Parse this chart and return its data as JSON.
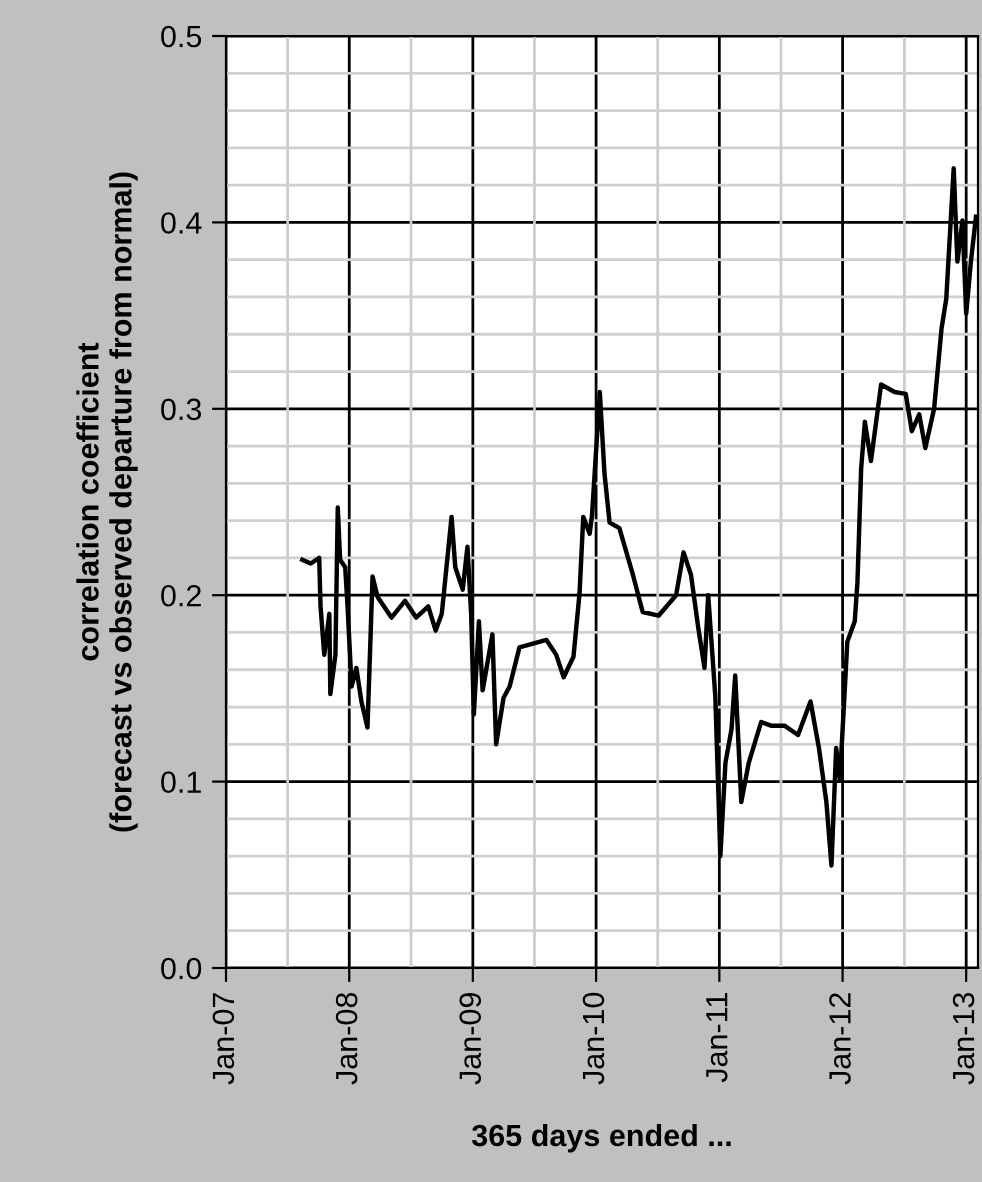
{
  "chart_data": {
    "type": "line",
    "xlabel": "365 days ended ...",
    "ylabel": "correlation coefficient\n(forecast vs observed departure from normal)",
    "series": [
      {
        "color": "#000000",
        "x": [
          "2007-08-15",
          "2007-09-09",
          "2007-10-04",
          "2007-10-08",
          "2007-10-19",
          "2007-11-03",
          "2007-11-06",
          "2007-11-21",
          "2007-11-28",
          "2007-12-05",
          "2007-12-20",
          "2007-12-27",
          "2008-01-08",
          "2008-01-22",
          "2008-02-06",
          "2008-02-24",
          "2008-03-10",
          "2008-03-25",
          "2008-05-05",
          "2008-06-14",
          "2008-07-17",
          "2008-08-22",
          "2008-09-13",
          "2008-10-01",
          "2008-10-30",
          "2008-11-10",
          "2008-12-02",
          "2008-12-16",
          "2008-12-27",
          "2009-01-04",
          "2009-01-19",
          "2009-01-30",
          "2009-02-28",
          "2009-03-11",
          "2009-04-02",
          "2009-04-20",
          "2009-05-19",
          "2009-06-28",
          "2009-08-07",
          "2009-09-05",
          "2009-09-27",
          "2009-10-26",
          "2009-11-13",
          "2009-11-24",
          "2009-12-13",
          "2009-12-20",
          "2010-01-12",
          "2010-01-26",
          "2010-02-10",
          "2010-03-11",
          "2010-04-20",
          "2010-05-19",
          "2010-07-05",
          "2010-08-26",
          "2010-09-17",
          "2010-10-09",
          "2010-10-31",
          "2010-11-18",
          "2010-11-29",
          "2010-12-20",
          "2011-01-04",
          "2011-01-19",
          "2011-02-06",
          "2011-02-17",
          "2011-03-07",
          "2011-03-29",
          "2011-05-05",
          "2011-06-03",
          "2011-07-13",
          "2011-08-22",
          "2011-09-28",
          "2011-10-23",
          "2011-11-14",
          "2011-11-29",
          "2011-12-13",
          "2011-12-24",
          "2012-01-15",
          "2012-02-06",
          "2012-02-14",
          "2012-02-25",
          "2012-03-07",
          "2012-03-25",
          "2012-04-24",
          "2012-06-03",
          "2012-07-06",
          "2012-07-24",
          "2012-08-15",
          "2012-09-02",
          "2012-09-28",
          "2012-10-20",
          "2012-11-03",
          "2012-11-25",
          "2012-12-06",
          "2012-12-21",
          "2013-01-01",
          "2013-01-15",
          "2013-01-30"
        ],
        "values": [
          0.219,
          0.217,
          0.22,
          0.194,
          0.168,
          0.19,
          0.147,
          0.168,
          0.247,
          0.219,
          0.215,
          0.194,
          0.151,
          0.161,
          0.143,
          0.129,
          0.21,
          0.199,
          0.188,
          0.197,
          0.188,
          0.194,
          0.181,
          0.19,
          0.242,
          0.215,
          0.203,
          0.226,
          0.19,
          0.136,
          0.186,
          0.149,
          0.179,
          0.12,
          0.145,
          0.151,
          0.172,
          0.174,
          0.176,
          0.168,
          0.156,
          0.167,
          0.201,
          0.242,
          0.233,
          0.243,
          0.309,
          0.265,
          0.239,
          0.236,
          0.211,
          0.191,
          0.189,
          0.2,
          0.223,
          0.211,
          0.182,
          0.161,
          0.2,
          0.146,
          0.06,
          0.11,
          0.128,
          0.157,
          0.089,
          0.11,
          0.132,
          0.13,
          0.13,
          0.125,
          0.143,
          0.118,
          0.089,
          0.055,
          0.118,
          0.101,
          0.175,
          0.186,
          0.207,
          0.268,
          0.293,
          0.272,
          0.313,
          0.309,
          0.308,
          0.288,
          0.297,
          0.279,
          0.3,
          0.343,
          0.359,
          0.429,
          0.379,
          0.401,
          0.351,
          0.379,
          0.403
        ]
      }
    ],
    "xlim": [
      "2007-01-01",
      "2013-02-05"
    ],
    "xticks": [
      {
        "value": "2007-01-01",
        "label": "Jan-07"
      },
      {
        "value": "2008-01-01",
        "label": "Jan-08"
      },
      {
        "value": "2009-01-01",
        "label": "Jan-09"
      },
      {
        "value": "2010-01-01",
        "label": "Jan-10"
      },
      {
        "value": "2011-01-01",
        "label": "Jan-11"
      },
      {
        "value": "2012-01-01",
        "label": "Jan-12"
      },
      {
        "value": "2013-01-01",
        "label": "Jan-13"
      }
    ],
    "ylim": [
      0,
      0.5
    ],
    "yticks": [
      {
        "value": 0,
        "label": "0.0"
      },
      0.1,
      0.2,
      0.3,
      0.4,
      0.5
    ],
    "grid": true,
    "legend": false,
    "marker": "none",
    "line_style": "solid"
  }
}
